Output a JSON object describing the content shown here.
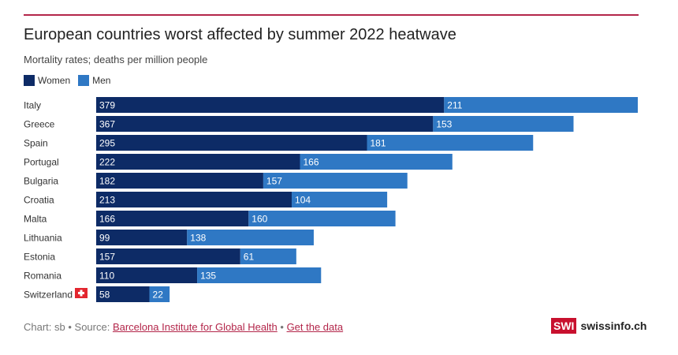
{
  "header": {
    "title": "European countries worst affected by summer 2022 heatwave",
    "subtitle": "Mortality rates; deaths per million people"
  },
  "legend": {
    "women": "Women",
    "men": "Men"
  },
  "colors": {
    "women": "#0d2b66",
    "men": "#2f78c4",
    "accent": "#b3264a",
    "flag": "#e3262f"
  },
  "chart_data": {
    "type": "bar",
    "orientation": "horizontal",
    "stacked": true,
    "categories": [
      "Italy",
      "Greece",
      "Spain",
      "Portugal",
      "Bulgaria",
      "Croatia",
      "Malta",
      "Lithuania",
      "Estonia",
      "Romania",
      "Switzerland"
    ],
    "series": [
      {
        "name": "Women",
        "values": [
          379,
          367,
          295,
          222,
          182,
          213,
          166,
          99,
          157,
          110,
          58
        ]
      },
      {
        "name": "Men",
        "values": [
          211,
          153,
          181,
          166,
          157,
          104,
          160,
          138,
          61,
          135,
          22
        ]
      }
    ],
    "xlim": [
      0,
      590
    ],
    "grid": false,
    "legend_position": "top-left",
    "flag_category": "Switzerland",
    "flag_icon": "swiss-flag-icon"
  },
  "footer": {
    "prefix": "Chart: sb • Source: ",
    "source_link": "Barcelona Institute for Global Health",
    "separator": " • ",
    "data_link": "Get the data"
  },
  "brand": {
    "badge": "SWI",
    "name": "swissinfo.ch"
  }
}
